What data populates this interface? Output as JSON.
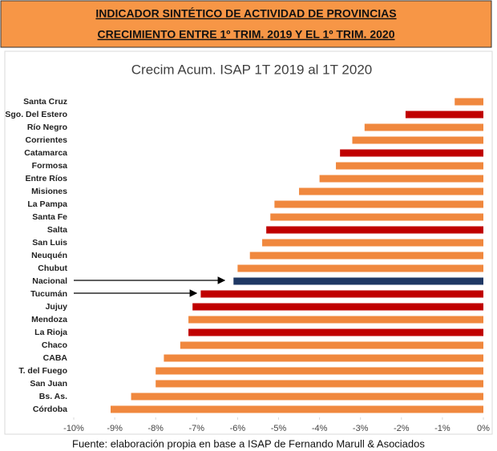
{
  "header": {
    "lines": [
      "INDICADOR SINTÉTICO DE ACTIVIDAD DE PROVINCIAS",
      "CRECIMIENTO ENTRE 1º TRIM. 2019 Y EL 1º TRIM. 2020"
    ]
  },
  "chart_data": {
    "type": "barh",
    "title": "Crecim Acum. ISAP 1T 2019 al 1T 2020",
    "categories": [
      "Santa Cruz",
      "Sgo. Del Estero",
      "Río Negro",
      "Corrientes",
      "Catamarca",
      "Formosa",
      "Entre Ríos",
      "Misiones",
      "La Pampa",
      "Santa Fe",
      "Salta",
      "San Luis",
      "Neuquén",
      "Chubut",
      "Nacional",
      "Tucumán",
      "Jujuy",
      "Mendoza",
      "La Rioja",
      "Chaco",
      "CABA",
      "T. del Fuego",
      "San Juan",
      "Bs. As.",
      "Córdoba"
    ],
    "values": [
      -0.7,
      -1.9,
      -2.9,
      -3.2,
      -3.5,
      -3.6,
      -4.0,
      -4.5,
      -5.1,
      -5.2,
      -5.3,
      -5.4,
      -5.7,
      -6.0,
      -6.1,
      -6.9,
      -7.1,
      -7.2,
      -7.2,
      -7.4,
      -7.8,
      -8.0,
      -8.0,
      -8.6,
      -9.1
    ],
    "colors": [
      "#f0883e",
      "#c00000",
      "#f0883e",
      "#f0883e",
      "#c00000",
      "#f0883e",
      "#f0883e",
      "#f0883e",
      "#f0883e",
      "#f0883e",
      "#c00000",
      "#f0883e",
      "#f0883e",
      "#f0883e",
      "#1f3864",
      "#c00000",
      "#c00000",
      "#f0883e",
      "#c00000",
      "#f0883e",
      "#f0883e",
      "#f0883e",
      "#f0883e",
      "#f0883e",
      "#f0883e"
    ],
    "xlim": [
      -10,
      0
    ],
    "xticks": [
      {
        "value": -10,
        "label": "-10%"
      },
      {
        "value": -9,
        "label": "-9%"
      },
      {
        "value": -8,
        "label": "-8%"
      },
      {
        "value": -7,
        "label": "-7%"
      },
      {
        "value": -6,
        "label": "-6%"
      },
      {
        "value": -5,
        "label": "-5%"
      },
      {
        "value": -4,
        "label": "-4%"
      },
      {
        "value": -3,
        "label": "-3%"
      },
      {
        "value": -2,
        "label": "-2%"
      },
      {
        "value": -1,
        "label": "-1%"
      },
      {
        "value": 0,
        "label": "0%"
      }
    ],
    "source": "Fuente: elaboración propia en base a ISAP de Fernando Marull & Asociados"
  }
}
